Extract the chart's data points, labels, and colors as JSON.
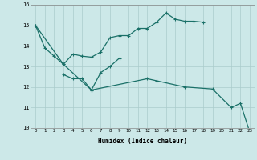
{
  "xlabel": "Humidex (Indice chaleur)",
  "x": [
    0,
    1,
    2,
    3,
    4,
    5,
    6,
    7,
    8,
    9,
    10,
    11,
    12,
    13,
    14,
    15,
    16,
    17,
    18,
    19,
    20,
    21,
    22,
    23
  ],
  "line1_x": [
    0,
    1,
    2,
    3,
    4,
    5,
    6,
    7,
    8,
    9,
    10,
    11,
    12,
    13,
    14,
    15,
    16,
    17,
    18
  ],
  "line1_y": [
    15.0,
    13.9,
    13.5,
    13.1,
    13.6,
    13.5,
    13.45,
    13.7,
    14.4,
    14.5,
    14.5,
    14.85,
    14.85,
    15.15,
    15.6,
    15.3,
    15.2,
    15.2,
    15.15
  ],
  "line2_x": [
    3,
    4,
    5,
    6,
    7,
    8,
    9
  ],
  "line2_y": [
    12.6,
    12.4,
    12.4,
    11.85,
    12.7,
    13.0,
    13.4
  ],
  "line3_x": [
    0,
    3,
    6,
    12,
    13,
    16,
    19,
    21,
    22,
    23
  ],
  "line3_y": [
    15.0,
    13.1,
    11.85,
    12.4,
    12.3,
    12.0,
    11.9,
    11.0,
    11.2,
    9.8
  ],
  "bg_color": "#cce8e8",
  "grid_color": "#aacccc",
  "line_color": "#1a7068",
  "ylim": [
    10,
    16
  ],
  "xlim": [
    -0.5,
    23.5
  ]
}
